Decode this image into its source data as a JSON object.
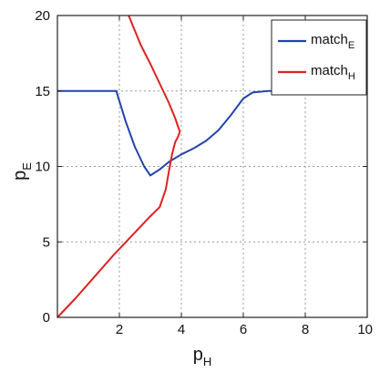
{
  "chart_data": {
    "type": "line",
    "xlabel": "p",
    "xlabel_subscript": "H",
    "ylabel": "p",
    "ylabel_subscript": "E",
    "xlim": [
      0,
      10
    ],
    "ylim": [
      0,
      20
    ],
    "xticks": [
      "2",
      "4",
      "6",
      "8",
      "10"
    ],
    "yticks": [
      "0",
      "5",
      "10",
      "15",
      "20"
    ],
    "grid": true,
    "legend_position": "top-right",
    "series": [
      {
        "name": "match",
        "name_subscript": "E",
        "color": "#2244aa",
        "x": [
          0,
          1.9,
          2.2,
          2.5,
          2.8,
          3.0,
          3.3,
          3.6,
          4.0,
          4.4,
          4.8,
          5.2,
          5.6,
          6.0,
          6.3,
          6.8,
          7.2,
          7.6
        ],
        "y": [
          15,
          15,
          13.0,
          11.3,
          10.0,
          9.4,
          9.8,
          10.3,
          10.8,
          11.2,
          11.7,
          12.4,
          13.4,
          14.5,
          14.9,
          15,
          15,
          15
        ]
      },
      {
        "name": "match",
        "name_subscript": "H",
        "color": "#dd2222",
        "x": [
          0,
          0.6,
          1.2,
          1.8,
          2.4,
          3.0,
          3.3,
          3.5,
          3.6,
          3.7,
          3.8,
          3.9,
          3.95,
          3.8,
          3.6,
          3.3,
          3.0,
          2.7,
          2.5,
          2.3
        ],
        "y": [
          0,
          1.3,
          2.7,
          4.1,
          5.4,
          6.7,
          7.3,
          8.5,
          9.7,
          10.8,
          11.6,
          12.0,
          12.3,
          13.2,
          14.2,
          15.5,
          16.8,
          18.0,
          19.0,
          20
        ]
      }
    ]
  }
}
